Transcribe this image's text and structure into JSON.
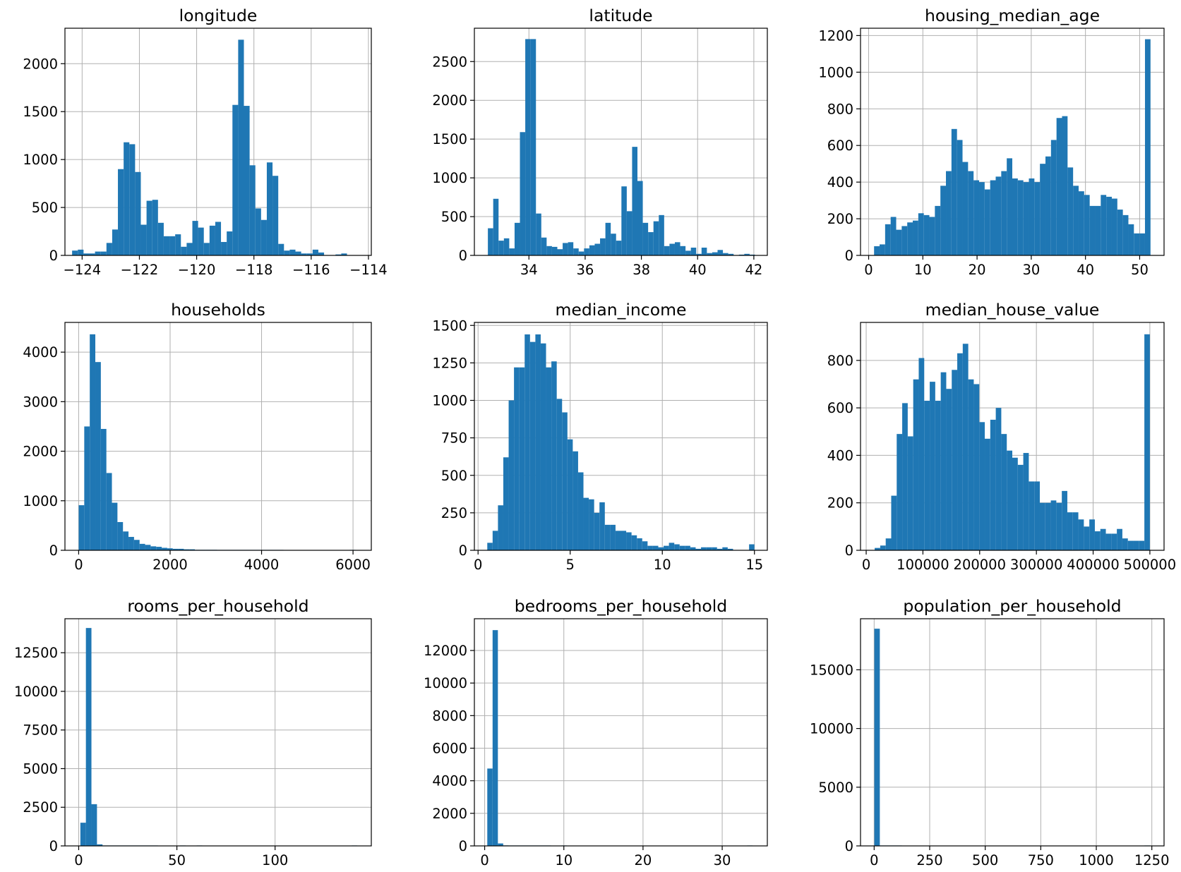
{
  "figure": {
    "background": "#ffffff",
    "bar_color": "#1f77b4",
    "grid_color": "#b0b0b0",
    "axes_color": "#000000"
  },
  "chart_data": [
    {
      "type": "bar",
      "title": "longitude",
      "grid": true,
      "bins": 50,
      "xlim": [
        -124.6,
        -113.9
      ],
      "ylim": [
        0,
        2370
      ],
      "xticks": [
        -124,
        -122,
        -120,
        -118,
        -116,
        -114
      ],
      "xtick_labels": [
        "−124",
        "−122",
        "−120",
        "−118",
        "−116",
        "−114"
      ],
      "yticks": [
        0,
        500,
        1000,
        1500,
        2000
      ],
      "ytick_labels": [
        "0",
        "500",
        "1000",
        "1500",
        "2000"
      ],
      "bin_edges": [
        -124.35,
        -124.15,
        -123.95,
        -123.75,
        -123.55,
        -123.35,
        -123.15,
        -122.95,
        -122.75,
        -122.55,
        -122.35,
        -122.15,
        -121.95,
        -121.75,
        -121.55,
        -121.35,
        -121.15,
        -120.95,
        -120.75,
        -120.55,
        -120.35,
        -120.15,
        -119.95,
        -119.75,
        -119.55,
        -119.35,
        -119.15,
        -118.95,
        -118.75,
        -118.55,
        -118.35,
        -118.15,
        -117.95,
        -117.75,
        -117.55,
        -117.35,
        -117.15,
        -116.95,
        -116.75,
        -116.55,
        -116.35,
        -116.15,
        -115.95,
        -115.75,
        -115.55,
        -115.35,
        -115.15,
        -114.95,
        -114.75,
        -114.55,
        -114.35
      ],
      "counts": [
        50,
        60,
        20,
        20,
        40,
        40,
        130,
        270,
        900,
        1180,
        1160,
        870,
        320,
        570,
        580,
        340,
        200,
        200,
        220,
        90,
        130,
        360,
        290,
        130,
        310,
        350,
        140,
        250,
        1570,
        2250,
        1560,
        940,
        490,
        370,
        970,
        830,
        120,
        50,
        60,
        40,
        20,
        20,
        60,
        30,
        0,
        0,
        10,
        20,
        0,
        0
      ]
    },
    {
      "type": "bar",
      "title": "latitude",
      "grid": true,
      "bins": 50,
      "xlim": [
        32.06,
        42.48
      ],
      "ylim": [
        0,
        2930
      ],
      "xticks": [
        34,
        36,
        38,
        40,
        42
      ],
      "xtick_labels": [
        "34",
        "36",
        "38",
        "40",
        "42"
      ],
      "yticks": [
        0,
        500,
        1000,
        1500,
        2000,
        2500
      ],
      "ytick_labels": [
        "0",
        "500",
        "1000",
        "1500",
        "2000",
        "2500"
      ],
      "bin_edges": [
        32.54,
        32.73,
        32.92,
        33.11,
        33.3,
        33.49,
        33.68,
        33.87,
        34.06,
        34.25,
        34.44,
        34.63,
        34.82,
        35.01,
        35.2,
        35.39,
        35.58,
        35.77,
        35.96,
        36.15,
        36.34,
        36.53,
        36.72,
        36.91,
        37.1,
        37.29,
        37.48,
        37.67,
        37.86,
        38.05,
        38.24,
        38.43,
        38.62,
        38.81,
        39.0,
        39.19,
        39.38,
        39.57,
        39.76,
        39.95,
        40.14,
        40.33,
        40.52,
        40.71,
        40.9,
        41.09,
        41.28,
        41.47,
        41.66,
        41.85,
        42.04
      ],
      "counts": [
        350,
        730,
        190,
        220,
        90,
        420,
        1590,
        2790,
        2790,
        540,
        230,
        120,
        110,
        80,
        160,
        170,
        90,
        50,
        90,
        130,
        150,
        220,
        420,
        280,
        190,
        890,
        570,
        1400,
        960,
        420,
        300,
        440,
        520,
        120,
        150,
        170,
        120,
        60,
        100,
        20,
        100,
        30,
        40,
        70,
        30,
        20,
        0,
        10,
        20,
        10
      ]
    },
    {
      "type": "bar",
      "title": "housing_median_age",
      "grid": true,
      "bins": 50,
      "xlim": [
        -1.5,
        54.5
      ],
      "ylim": [
        0,
        1240
      ],
      "xticks": [
        0,
        10,
        20,
        30,
        40,
        50
      ],
      "xtick_labels": [
        "0",
        "10",
        "20",
        "30",
        "40",
        "50"
      ],
      "yticks": [
        0,
        200,
        400,
        600,
        800,
        1000,
        1200
      ],
      "ytick_labels": [
        "0",
        "200",
        "400",
        "600",
        "800",
        "1000",
        "1200"
      ],
      "bin_edges": [
        1.0,
        2.02,
        3.04,
        4.06,
        5.08,
        6.1,
        7.12,
        8.14,
        9.16,
        10.18,
        11.2,
        12.22,
        13.24,
        14.26,
        15.28,
        16.3,
        17.32,
        18.34,
        19.36,
        20.38,
        21.4,
        22.42,
        23.44,
        24.46,
        25.48,
        26.5,
        27.52,
        28.54,
        29.56,
        30.58,
        31.6,
        32.62,
        33.64,
        34.66,
        35.68,
        36.7,
        37.72,
        38.74,
        39.76,
        40.78,
        41.8,
        42.82,
        43.84,
        44.86,
        45.88,
        46.9,
        47.92,
        48.94,
        49.96,
        50.98,
        52.0
      ],
      "counts": [
        50,
        60,
        170,
        210,
        140,
        160,
        180,
        190,
        230,
        220,
        210,
        270,
        380,
        460,
        690,
        630,
        510,
        460,
        410,
        400,
        360,
        410,
        430,
        460,
        530,
        420,
        410,
        400,
        420,
        400,
        500,
        540,
        630,
        750,
        760,
        480,
        380,
        350,
        330,
        270,
        270,
        330,
        320,
        310,
        250,
        220,
        170,
        120,
        120,
        1180
      ]
    },
    {
      "type": "bar",
      "title": "households",
      "grid": true,
      "bins": 50,
      "xlim": [
        -300,
        6400
      ],
      "ylim": [
        0,
        4600
      ],
      "xticks": [
        0,
        2000,
        4000,
        6000
      ],
      "xtick_labels": [
        "0",
        "2000",
        "4000",
        "6000"
      ],
      "yticks": [
        0,
        1000,
        2000,
        3000,
        4000
      ],
      "ytick_labels": [
        "0",
        "1000",
        "2000",
        "3000",
        "4000"
      ],
      "bin_edges": [
        1,
        122,
        243,
        364,
        485,
        606,
        727,
        848,
        969,
        1090,
        1211,
        1332,
        1453,
        1574,
        1695,
        1816,
        1937,
        2058,
        2179,
        2300,
        2421,
        2542,
        2663,
        2784,
        2905,
        3026,
        3147,
        3268,
        3389,
        3510,
        3631,
        3752,
        3873,
        3994,
        4115,
        4236,
        4357,
        4478,
        4599,
        4720,
        4841,
        4962,
        5083,
        5204,
        5325,
        5446,
        5567,
        5688,
        5809,
        5930,
        6051
      ],
      "counts": [
        910,
        2500,
        4360,
        3800,
        2450,
        1560,
        960,
        570,
        380,
        270,
        210,
        130,
        110,
        80,
        70,
        50,
        40,
        30,
        30,
        20,
        20,
        10,
        10,
        10,
        10,
        5,
        5,
        3,
        3,
        2,
        2,
        2,
        1,
        1,
        1,
        1,
        1,
        0,
        0,
        0,
        0,
        0,
        0,
        0,
        0,
        0,
        0,
        0,
        0,
        1
      ]
    },
    {
      "type": "bar",
      "title": "median_income",
      "grid": true,
      "bins": 50,
      "xlim": [
        -0.2,
        15.7
      ],
      "ylim": [
        0,
        1520
      ],
      "xticks": [
        0,
        5,
        10,
        15
      ],
      "xtick_labels": [
        "0",
        "5",
        "10",
        "15"
      ],
      "yticks": [
        0,
        250,
        500,
        750,
        1000,
        1250,
        1500
      ],
      "ytick_labels": [
        "0",
        "250",
        "500",
        "750",
        "1000",
        "1250",
        "1500"
      ],
      "bin_edges": [
        0.5,
        0.79,
        1.08,
        1.37,
        1.66,
        1.95,
        2.24,
        2.53,
        2.82,
        3.11,
        3.4,
        3.69,
        3.98,
        4.27,
        4.56,
        4.85,
        5.14,
        5.43,
        5.72,
        6.01,
        6.3,
        6.59,
        6.88,
        7.17,
        7.46,
        7.75,
        8.04,
        8.33,
        8.62,
        8.91,
        9.2,
        9.49,
        9.78,
        10.07,
        10.36,
        10.65,
        10.94,
        11.23,
        11.52,
        11.81,
        12.1,
        12.39,
        12.68,
        12.97,
        13.26,
        13.55,
        13.84,
        14.13,
        14.42,
        14.71,
        15.0
      ],
      "counts": [
        50,
        130,
        300,
        620,
        1000,
        1220,
        1220,
        1440,
        1390,
        1440,
        1380,
        1220,
        1260,
        1010,
        920,
        740,
        660,
        520,
        350,
        340,
        250,
        320,
        170,
        170,
        130,
        130,
        120,
        100,
        80,
        60,
        30,
        30,
        20,
        30,
        50,
        40,
        30,
        30,
        20,
        10,
        20,
        20,
        20,
        10,
        20,
        10,
        0,
        0,
        0,
        40
      ]
    },
    {
      "type": "bar",
      "title": "median_house_value",
      "grid": true,
      "bins": 50,
      "xlim": [
        -10000,
        525000
      ],
      "ylim": [
        0,
        960
      ],
      "xticks": [
        0,
        100000,
        200000,
        300000,
        400000,
        500000
      ],
      "xtick_labels": [
        "0",
        "100000",
        "200000",
        "300000",
        "400000",
        "500000"
      ],
      "yticks": [
        0,
        200,
        400,
        600,
        800
      ],
      "ytick_labels": [
        "0",
        "200",
        "400",
        "600",
        "800"
      ],
      "bin_edges": [
        15000,
        24700,
        34400,
        44100,
        53800,
        63500,
        73200,
        82900,
        92600,
        102300,
        112000,
        121700,
        131400,
        141100,
        150800,
        160500,
        170200,
        179900,
        189600,
        199300,
        209000,
        218700,
        228400,
        238100,
        247800,
        257500,
        267200,
        276900,
        286600,
        296300,
        306000,
        315700,
        325400,
        335100,
        344800,
        354500,
        364200,
        373900,
        383600,
        393300,
        403000,
        412700,
        422400,
        432100,
        441800,
        451500,
        461200,
        470900,
        480600,
        490300,
        500000
      ],
      "counts": [
        10,
        20,
        50,
        230,
        490,
        620,
        480,
        720,
        810,
        630,
        710,
        630,
        750,
        680,
        760,
        830,
        870,
        720,
        700,
        540,
        470,
        550,
        600,
        490,
        420,
        390,
        360,
        410,
        290,
        290,
        200,
        200,
        210,
        200,
        250,
        160,
        160,
        130,
        100,
        130,
        80,
        90,
        70,
        70,
        90,
        50,
        40,
        40,
        40,
        910
      ]
    },
    {
      "type": "bar",
      "title": "rooms_per_household",
      "grid": true,
      "bins": 50,
      "xlim": [
        -7,
        149
      ],
      "ylim": [
        0,
        14700
      ],
      "xticks": [
        0,
        50,
        100
      ],
      "xtick_labels": [
        "0",
        "50",
        "100"
      ],
      "yticks": [
        0,
        2500,
        5000,
        7500,
        10000,
        12500
      ],
      "ytick_labels": [
        "0",
        "2500",
        "5000",
        "7500",
        "10000",
        "12500"
      ],
      "bin_edges": [
        0.85,
        3.67,
        6.49,
        9.31,
        12.13,
        14.95,
        17.77,
        20.59,
        23.41,
        26.23,
        29.05,
        31.87,
        34.69,
        37.51,
        40.33,
        43.15,
        45.97,
        48.79,
        51.61,
        54.43,
        57.25,
        60.07,
        62.89,
        65.71,
        68.53,
        71.35,
        74.17,
        76.99,
        79.81,
        82.63,
        85.45,
        88.27,
        91.09,
        93.91,
        96.73,
        99.55,
        102.37,
        105.19,
        108.01,
        110.83,
        113.65,
        116.47,
        119.29,
        122.11,
        124.93,
        127.75,
        130.57,
        133.39,
        136.21,
        139.03,
        141.85
      ],
      "counts": [
        1500,
        14100,
        2700,
        100,
        20,
        10,
        5,
        3,
        2,
        1,
        1,
        1,
        1,
        1,
        0,
        0,
        0,
        0,
        1,
        0,
        0,
        1,
        0,
        0,
        0,
        0,
        0,
        0,
        0,
        0,
        0,
        0,
        0,
        0,
        0,
        0,
        0,
        0,
        0,
        0,
        0,
        0,
        0,
        0,
        0,
        0,
        0,
        0,
        0,
        1
      ]
    },
    {
      "type": "bar",
      "title": "bedrooms_per_household",
      "grid": true,
      "bins": 50,
      "xlim": [
        -1.3,
        35.7
      ],
      "ylim": [
        0,
        13950
      ],
      "xticks": [
        0,
        10,
        20,
        30
      ],
      "xtick_labels": [
        "0",
        "10",
        "20",
        "30"
      ],
      "yticks": [
        0,
        2000,
        4000,
        6000,
        8000,
        10000,
        12000
      ],
      "ytick_labels": [
        "0",
        "2000",
        "4000",
        "6000",
        "8000",
        "10000",
        "12000"
      ],
      "bin_edges": [
        0.33,
        1.0,
        1.67,
        2.34,
        3.01,
        3.68,
        4.35,
        5.02,
        5.69,
        6.36,
        7.03,
        7.7,
        8.37,
        9.04,
        9.71,
        10.38,
        11.05,
        11.72,
        12.39,
        13.06,
        13.73,
        14.4,
        15.07,
        15.74,
        16.41,
        17.08,
        17.75,
        18.42,
        19.09,
        19.76,
        20.43,
        21.1,
        21.77,
        22.44,
        23.11,
        23.78,
        24.45,
        25.12,
        25.79,
        26.46,
        27.13,
        27.8,
        28.47,
        29.14,
        29.81,
        30.48,
        31.15,
        31.82,
        32.49,
        33.16,
        33.83
      ],
      "counts": [
        4750,
        13250,
        150,
        30,
        10,
        5,
        3,
        2,
        1,
        1,
        1,
        1,
        0,
        0,
        1,
        0,
        0,
        0,
        0,
        0,
        0,
        0,
        0,
        0,
        0,
        0,
        0,
        0,
        0,
        0,
        0,
        0,
        0,
        0,
        0,
        0,
        0,
        0,
        0,
        0,
        0,
        0,
        0,
        0,
        0,
        0,
        0,
        0,
        0,
        1
      ]
    },
    {
      "type": "bar",
      "title": "population_per_household",
      "grid": true,
      "bins": 50,
      "xlim": [
        -61.4,
        1305
      ],
      "ylim": [
        0,
        19350
      ],
      "xticks": [
        0,
        250,
        500,
        750,
        1000,
        1250
      ],
      "xtick_labels": [
        "0",
        "250",
        "500",
        "750",
        "1000",
        "1250"
      ],
      "yticks": [
        0,
        5000,
        10000,
        15000
      ],
      "ytick_labels": [
        "0",
        "5000",
        "10000",
        "15000"
      ],
      "bin_edges": [
        0.7,
        25.52,
        50.34,
        75.16,
        99.98,
        124.8,
        149.62,
        174.44,
        199.26,
        224.08,
        248.9,
        273.72,
        298.54,
        323.36,
        348.18,
        373.0,
        397.82,
        422.64,
        447.46,
        472.28,
        497.1,
        521.92,
        546.74,
        571.56,
        596.38,
        621.2,
        646.02,
        670.84,
        695.66,
        720.48,
        745.3,
        770.12,
        794.94,
        819.76,
        844.58,
        869.4,
        894.22,
        919.04,
        943.86,
        968.68,
        993.5,
        1018.32,
        1043.14,
        1067.96,
        1092.78,
        1117.6,
        1142.42,
        1167.24,
        1192.06,
        1216.88,
        1241.7
      ],
      "counts": [
        18500,
        5,
        3,
        1,
        1,
        0,
        0,
        0,
        0,
        0,
        0,
        0,
        0,
        0,
        0,
        0,
        0,
        0,
        0,
        0,
        0,
        0,
        0,
        0,
        0,
        0,
        0,
        0,
        0,
        0,
        0,
        0,
        0,
        0,
        0,
        0,
        0,
        0,
        0,
        0,
        0,
        0,
        0,
        0,
        0,
        0,
        0,
        0,
        0,
        1
      ]
    }
  ]
}
